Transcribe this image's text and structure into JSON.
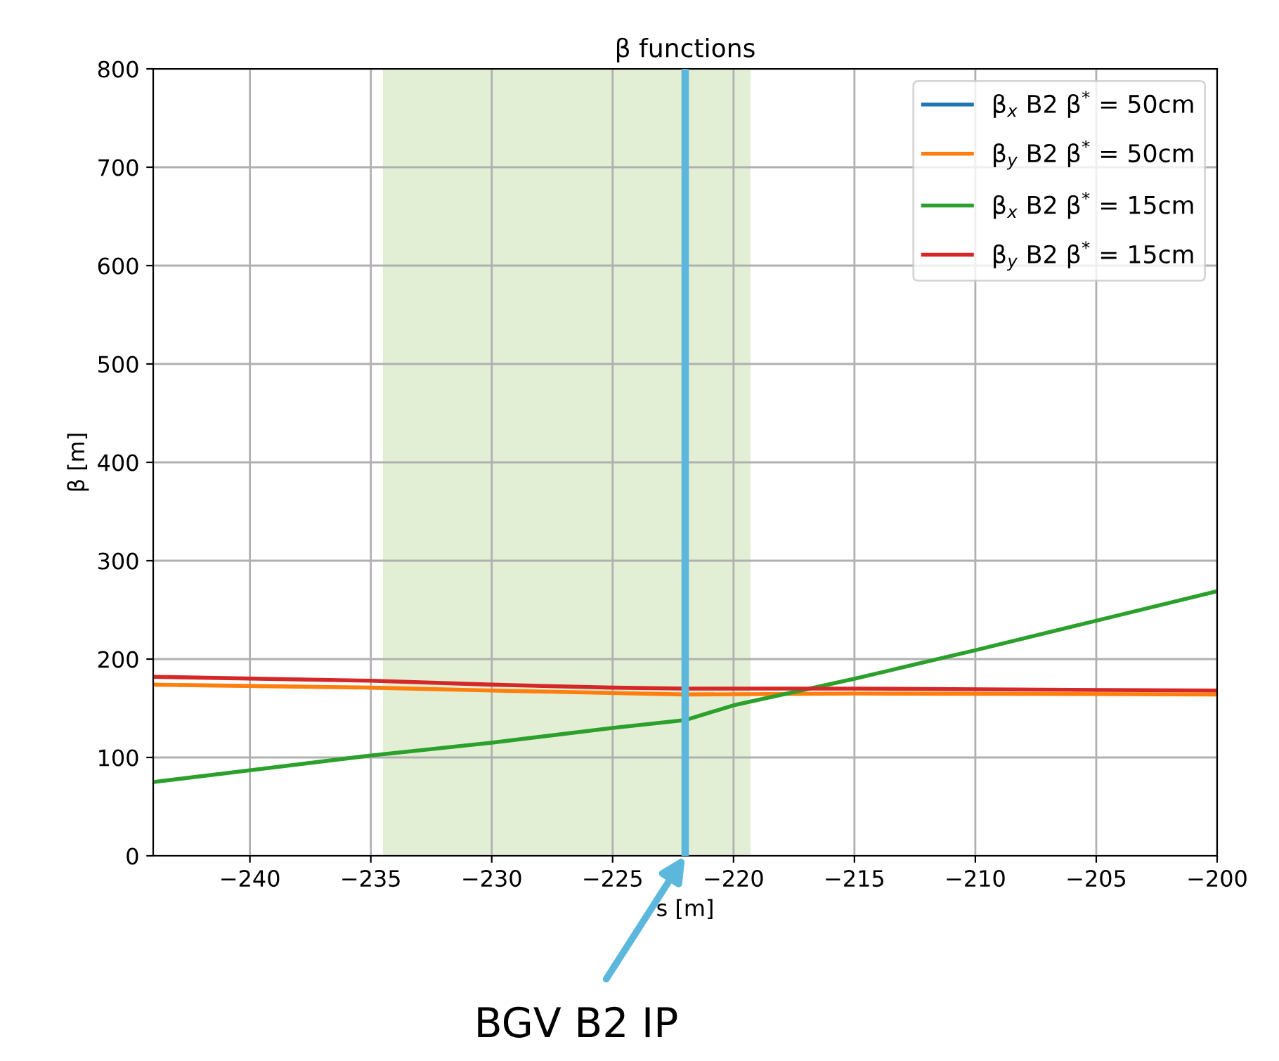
{
  "chart_data": {
    "type": "line",
    "title": "β functions",
    "xlabel": "s [m]",
    "ylabel": "β [m]",
    "xlim": [
      -244,
      -200
    ],
    "xticks": [
      -240,
      -235,
      -230,
      -225,
      -220,
      -215,
      -210,
      -205,
      -200
    ],
    "ylim": [
      0,
      800
    ],
    "yticks": [
      0,
      100,
      200,
      300,
      400,
      500,
      600,
      700,
      800
    ],
    "grid": true,
    "legend": "top right",
    "series": [
      {
        "name": "β$_{x}$ B2 β$^{*}$ = 50cm",
        "color": "#1f77b4"
      },
      {
        "name": "β$_{y}$ B2 β$^{*}$ = 50cm",
        "color": "#ff7f0e",
        "x": [
          -244,
          -235,
          -230,
          -222,
          -215,
          -200
        ],
        "values": [
          174,
          171,
          168,
          164,
          165,
          164
        ]
      },
      {
        "name": "β$_{x}$ B2 β$^{*}$ = 15cm",
        "color": "#2ca02c",
        "x": [
          -244,
          -240,
          -235,
          -230,
          -225,
          -222,
          -220,
          -215,
          -210,
          -205,
          -200
        ],
        "values": [
          75,
          87,
          102,
          115,
          130,
          138,
          153,
          180,
          209,
          239,
          269
        ]
      },
      {
        "name": "β$_{y}$ B2 β$^{*}$ = 15cm",
        "color": "#d62728",
        "x": [
          -244,
          -235,
          -230,
          -225,
          -222,
          -215,
          -200
        ],
        "values": [
          182,
          178,
          174,
          171,
          170,
          170,
          168
        ]
      }
    ],
    "bands": [
      {
        "axis": "x",
        "from": -234.5,
        "to": -219.3,
        "color": "#e2efd4"
      }
    ],
    "ref_lines": [
      {
        "axis": "x",
        "value": -222,
        "label": "BGV B2 IP",
        "color": "#5bb8dc"
      }
    ]
  }
}
